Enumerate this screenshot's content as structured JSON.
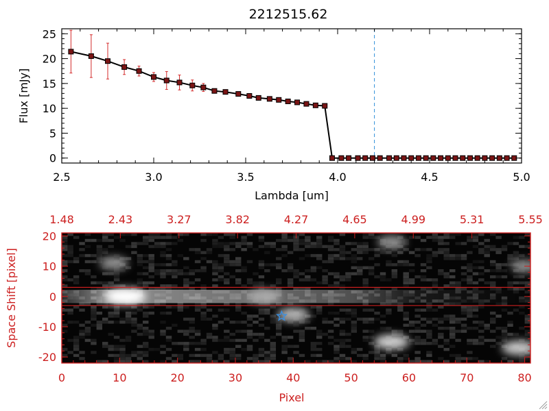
{
  "colors": {
    "axes_black": "#000000",
    "axes_red": "#cc1f1f",
    "errorbar_red": "#d42a2a",
    "marker_fill": "#7a1515",
    "reference_line_blue": "#2e8ed8",
    "image_background": "#050505",
    "star_marker_blue": "#3a8fe0"
  },
  "chart_data": [
    {
      "type": "line",
      "title": "2212515.62",
      "xlabel": "Lambda [um]",
      "ylabel": "Flux [mJy]",
      "xlim": [
        2.5,
        5.0
      ],
      "ylim": [
        -1,
        26
      ],
      "xticks": [
        "2.5",
        "3.0",
        "3.5",
        "4.0",
        "4.5",
        "5.0"
      ],
      "yticks": [
        "0",
        "5",
        "10",
        "15",
        "20",
        "25"
      ],
      "grid": false,
      "reference_line": {
        "x": 4.2,
        "style": "dashed"
      },
      "series": [
        {
          "x": [
            2.55,
            2.66,
            2.75,
            2.84,
            2.92,
            3.0,
            3.07,
            3.14,
            3.21,
            3.27,
            3.33,
            3.39,
            3.46,
            3.52,
            3.57,
            3.63,
            3.68,
            3.73,
            3.78,
            3.83,
            3.88,
            3.93,
            3.97,
            4.02,
            4.06,
            4.11,
            4.15,
            4.19,
            4.23,
            4.28,
            4.32,
            4.36,
            4.4,
            4.44,
            4.48,
            4.52,
            4.56,
            4.6,
            4.64,
            4.68,
            4.72,
            4.76,
            4.8,
            4.84,
            4.88,
            4.92,
            4.96
          ],
          "y": [
            21.4,
            20.5,
            19.5,
            18.3,
            17.5,
            16.3,
            15.6,
            15.2,
            14.6,
            14.2,
            13.5,
            13.3,
            12.9,
            12.5,
            12.1,
            11.9,
            11.7,
            11.4,
            11.2,
            10.9,
            10.6,
            10.5,
            0,
            0,
            0,
            0,
            0,
            0,
            0,
            0,
            0,
            0,
            0,
            0,
            0,
            0,
            0,
            0,
            0,
            0,
            0,
            0,
            0,
            0,
            0,
            0,
            0
          ],
          "yerr": [
            4.3,
            4.3,
            3.6,
            1.5,
            1.0,
            0.9,
            1.8,
            1.5,
            1.1,
            0.8,
            0.3,
            0.3,
            0.2,
            0.2,
            0.2,
            0.2,
            0.2,
            0.2,
            0.2,
            0.2,
            0.2,
            0.2,
            0,
            0,
            0,
            0,
            0,
            0,
            0,
            0,
            0,
            0,
            0,
            0,
            0,
            0,
            0,
            0,
            0,
            0,
            0,
            0,
            0,
            0,
            0,
            0,
            0
          ]
        }
      ]
    },
    {
      "type": "heatmap",
      "xlabel": "Pixel",
      "ylabel": "Space Shift [pixel]",
      "xlim": [
        0,
        81
      ],
      "ylim": [
        -22,
        21
      ],
      "xticks": [
        "0",
        "10",
        "20",
        "30",
        "40",
        "50",
        "60",
        "70",
        "80"
      ],
      "yticks": [
        "-20",
        "-10",
        "0",
        "10",
        "20"
      ],
      "top_axis_ticks": [
        "1.48",
        "2.43",
        "3.27",
        "3.82",
        "4.27",
        "4.65",
        "4.99",
        "5.31",
        "5.55"
      ],
      "extraction_window": [
        -3,
        3
      ],
      "star_marker": {
        "x": 38,
        "y": -6.5
      },
      "sources": [
        {
          "x": 11,
          "y": 0,
          "intensity": 1.0
        },
        {
          "x": 35,
          "y": 0,
          "intensity": 0.5
        },
        {
          "x": 40,
          "y": -6,
          "intensity": 0.55
        },
        {
          "x": 57,
          "y": -15,
          "intensity": 0.7
        },
        {
          "x": 79,
          "y": -17,
          "intensity": 0.65
        },
        {
          "x": 9,
          "y": 11,
          "intensity": 0.35
        },
        {
          "x": 57,
          "y": 18,
          "intensity": 0.35
        },
        {
          "x": 80,
          "y": 10,
          "intensity": 0.3
        }
      ]
    }
  ]
}
